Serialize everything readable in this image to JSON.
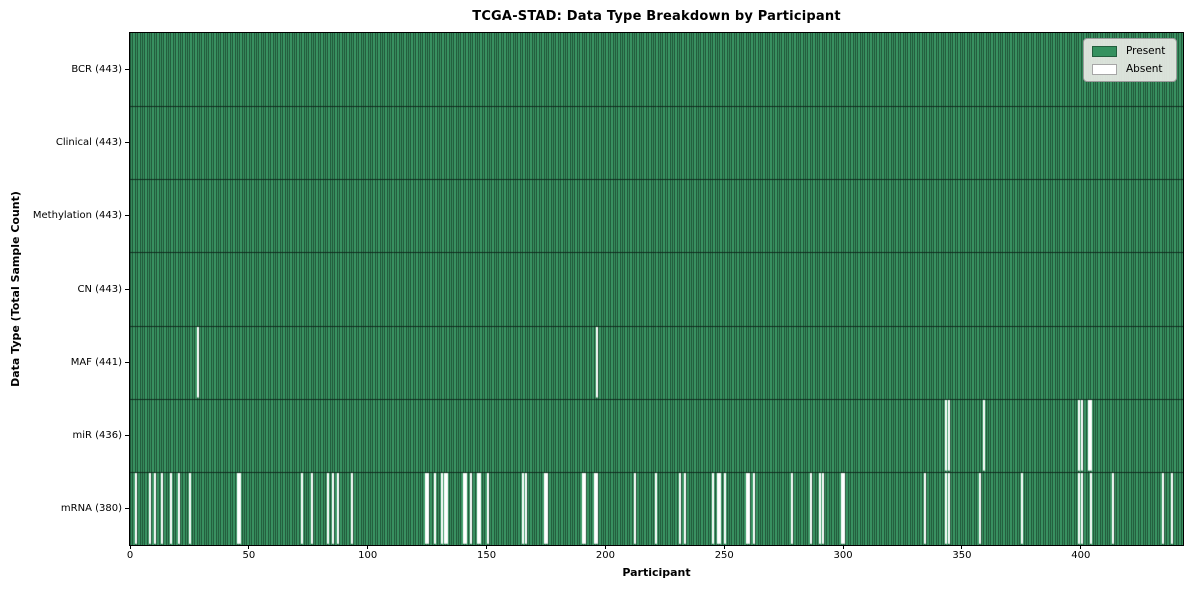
{
  "figure_title": "TCGA-STAD: Data Type Breakdown by Participant",
  "chart_data": {
    "type": "heatmap",
    "title": "TCGA-STAD: Data Type Breakdown by Participant",
    "xlabel": "Participant",
    "ylabel": "Data Type (Total Sample Count)",
    "x_ticks": [
      0,
      50,
      100,
      150,
      200,
      250,
      300,
      350,
      400
    ],
    "xlim": [
      0,
      443
    ],
    "n_participants": 443,
    "grid": false,
    "legend": {
      "position": "upper right",
      "items": [
        {
          "label": "Present",
          "color": "#35915f"
        },
        {
          "label": "Absent",
          "color": "#ffffff"
        }
      ]
    },
    "colors": {
      "present_fill": "#3c9a66",
      "bar_edge": "#16402a",
      "row_divider": "#0d2619",
      "absent": "#ffffff"
    },
    "rows": [
      {
        "label": "BCR (443)",
        "name": "BCR",
        "total": 443,
        "absent_participants": []
      },
      {
        "label": "Clinical (443)",
        "name": "Clinical",
        "total": 443,
        "absent_participants": []
      },
      {
        "label": "Methylation (443)",
        "name": "Methylation",
        "total": 443,
        "absent_participants": []
      },
      {
        "label": "CN (443)",
        "name": "CN",
        "total": 443,
        "absent_participants": []
      },
      {
        "label": "MAF (441)",
        "name": "MAF",
        "total": 441,
        "absent_participants": [
          28,
          196
        ]
      },
      {
        "label": "miR (436)",
        "name": "miR",
        "total": 436,
        "absent_participants": [
          343,
          344,
          359,
          399,
          400,
          403,
          404
        ]
      },
      {
        "label": "mRNA (380)",
        "name": "mRNA",
        "total": 380,
        "absent_participants": [
          2,
          8,
          10,
          13,
          17,
          20,
          25,
          45,
          46,
          72,
          76,
          83,
          85,
          87,
          93,
          124,
          125,
          128,
          131,
          132,
          133,
          140,
          141,
          143,
          146,
          147,
          150,
          165,
          166,
          174,
          175,
          190,
          191,
          195,
          196,
          212,
          221,
          231,
          233,
          245,
          247,
          248,
          250,
          259,
          260,
          262,
          278,
          286,
          290,
          291,
          299,
          300,
          334,
          343,
          344,
          357,
          375,
          399,
          400,
          404,
          413,
          434,
          438
        ]
      }
    ]
  }
}
